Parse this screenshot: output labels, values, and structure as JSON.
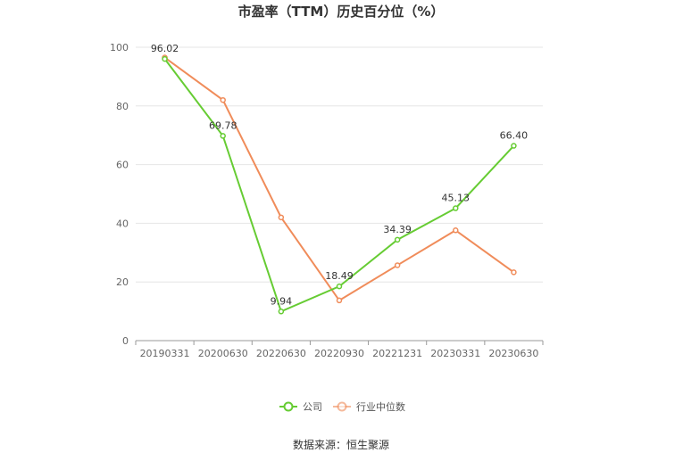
{
  "chart_data": {
    "type": "line",
    "title": "市盈率（TTM）历史百分位（%）",
    "xlabel": "",
    "ylabel": "",
    "ylim": [
      0,
      100
    ],
    "yticks": [
      0,
      20,
      40,
      60,
      80,
      100
    ],
    "categories": [
      "20190331",
      "20200630",
      "20220630",
      "20220930",
      "20221231",
      "20230331",
      "20230630"
    ],
    "series": [
      {
        "name": "公司",
        "color": "#66cc33",
        "values": [
          96.02,
          69.78,
          9.94,
          18.49,
          34.39,
          45.13,
          66.4
        ],
        "labels": [
          "96.02",
          "69.78",
          "9.94",
          "18.49",
          "34.39",
          "45.13",
          "66.40"
        ]
      },
      {
        "name": "行业中位数",
        "color": "#f08c5a",
        "values": [
          96.5,
          82.0,
          42.0,
          13.7,
          25.7,
          37.6,
          23.3
        ]
      }
    ],
    "grid": true,
    "legend_position": "bottom-center"
  },
  "footer": {
    "source": "数据来源：恒生聚源"
  }
}
